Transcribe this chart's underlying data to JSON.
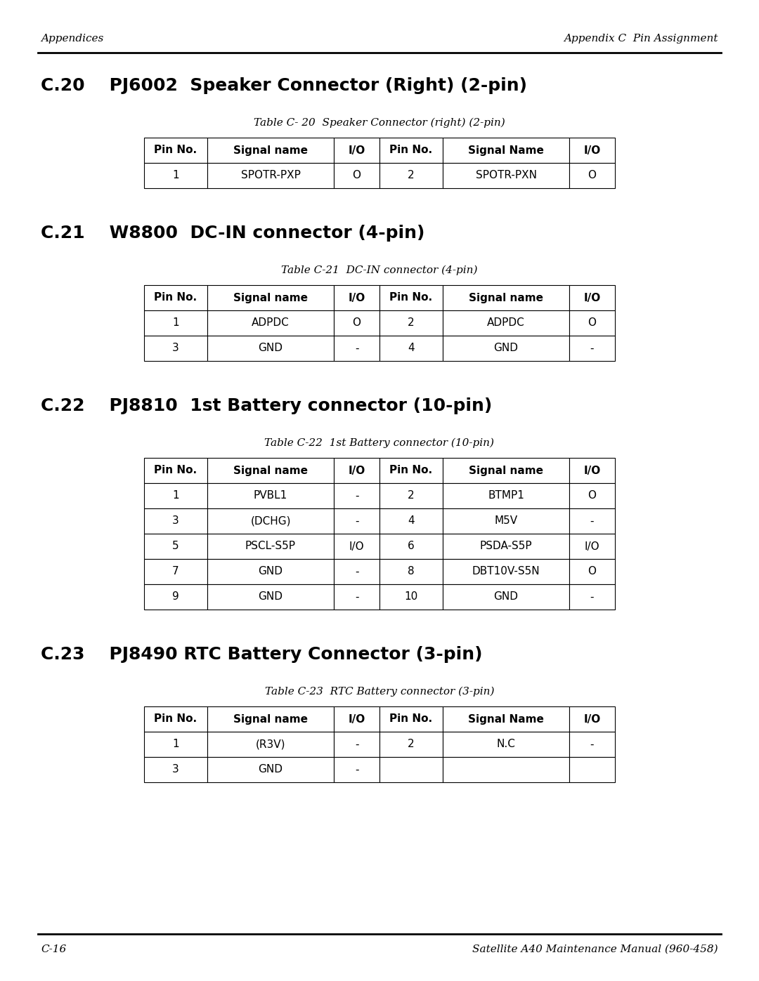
{
  "page_bg": "#ffffff",
  "header_left": "Appendices",
  "header_right": "Appendix C  Pin Assignment",
  "footer_left": "C-16",
  "footer_right": "Satellite A40 Maintenance Manual (960-458)",
  "section20_title": "C.20    PJ6002  Speaker Connector (Right) (2-pin)",
  "section20_caption": "Table C- 20  Speaker Connector (right) (2-pin)",
  "section20_headers": [
    "Pin No.",
    "Signal name",
    "I/O",
    "Pin No.",
    "Signal Name",
    "I/O"
  ],
  "section20_rows": [
    [
      "1",
      "SPOTR-PXP",
      "O",
      "2",
      "SPOTR-PXN",
      "O"
    ]
  ],
  "section21_title": "C.21    W8800  DC-IN connector (4-pin)",
  "section21_caption": "Table C-21  DC-IN connector (4-pin)",
  "section21_headers": [
    "Pin No.",
    "Signal name",
    "I/O",
    "Pin No.",
    "Signal name",
    "I/O"
  ],
  "section21_rows": [
    [
      "1",
      "ADPDC",
      "O",
      "2",
      "ADPDC",
      "O"
    ],
    [
      "3",
      "GND",
      "-",
      "4",
      "GND",
      "-"
    ]
  ],
  "section22_title": "C.22    PJ8810  1st Battery connector (10-pin)",
  "section22_caption": "Table C-22  1st Battery connector (10-pin)",
  "section22_headers": [
    "Pin No.",
    "Signal name",
    "I/O",
    "Pin No.",
    "Signal name",
    "I/O"
  ],
  "section22_rows": [
    [
      "1",
      "PVBL1",
      "-",
      "2",
      "BTMP1",
      "O"
    ],
    [
      "3",
      "(DCHG)",
      "-",
      "4",
      "M5V",
      "-"
    ],
    [
      "5",
      "PSCL-S5P",
      "I/O",
      "6",
      "PSDA-S5P",
      "I/O"
    ],
    [
      "7",
      "GND",
      "-",
      "8",
      "DBT10V-S5N",
      "O"
    ],
    [
      "9",
      "GND",
      "-",
      "10",
      "GND",
      "-"
    ]
  ],
  "section23_title": "C.23    PJ8490 RTC Battery Connector (3-pin)",
  "section23_caption": "Table C-23  RTC Battery connector (3-pin)",
  "section23_headers": [
    "Pin No.",
    "Signal name",
    "I/O",
    "Pin No.",
    "Signal Name",
    "I/O"
  ],
  "section23_rows": [
    [
      "1",
      "(R3V)",
      "-",
      "2",
      "N.C",
      "-"
    ],
    [
      "3",
      "GND",
      "-",
      "",
      "",
      ""
    ]
  ]
}
